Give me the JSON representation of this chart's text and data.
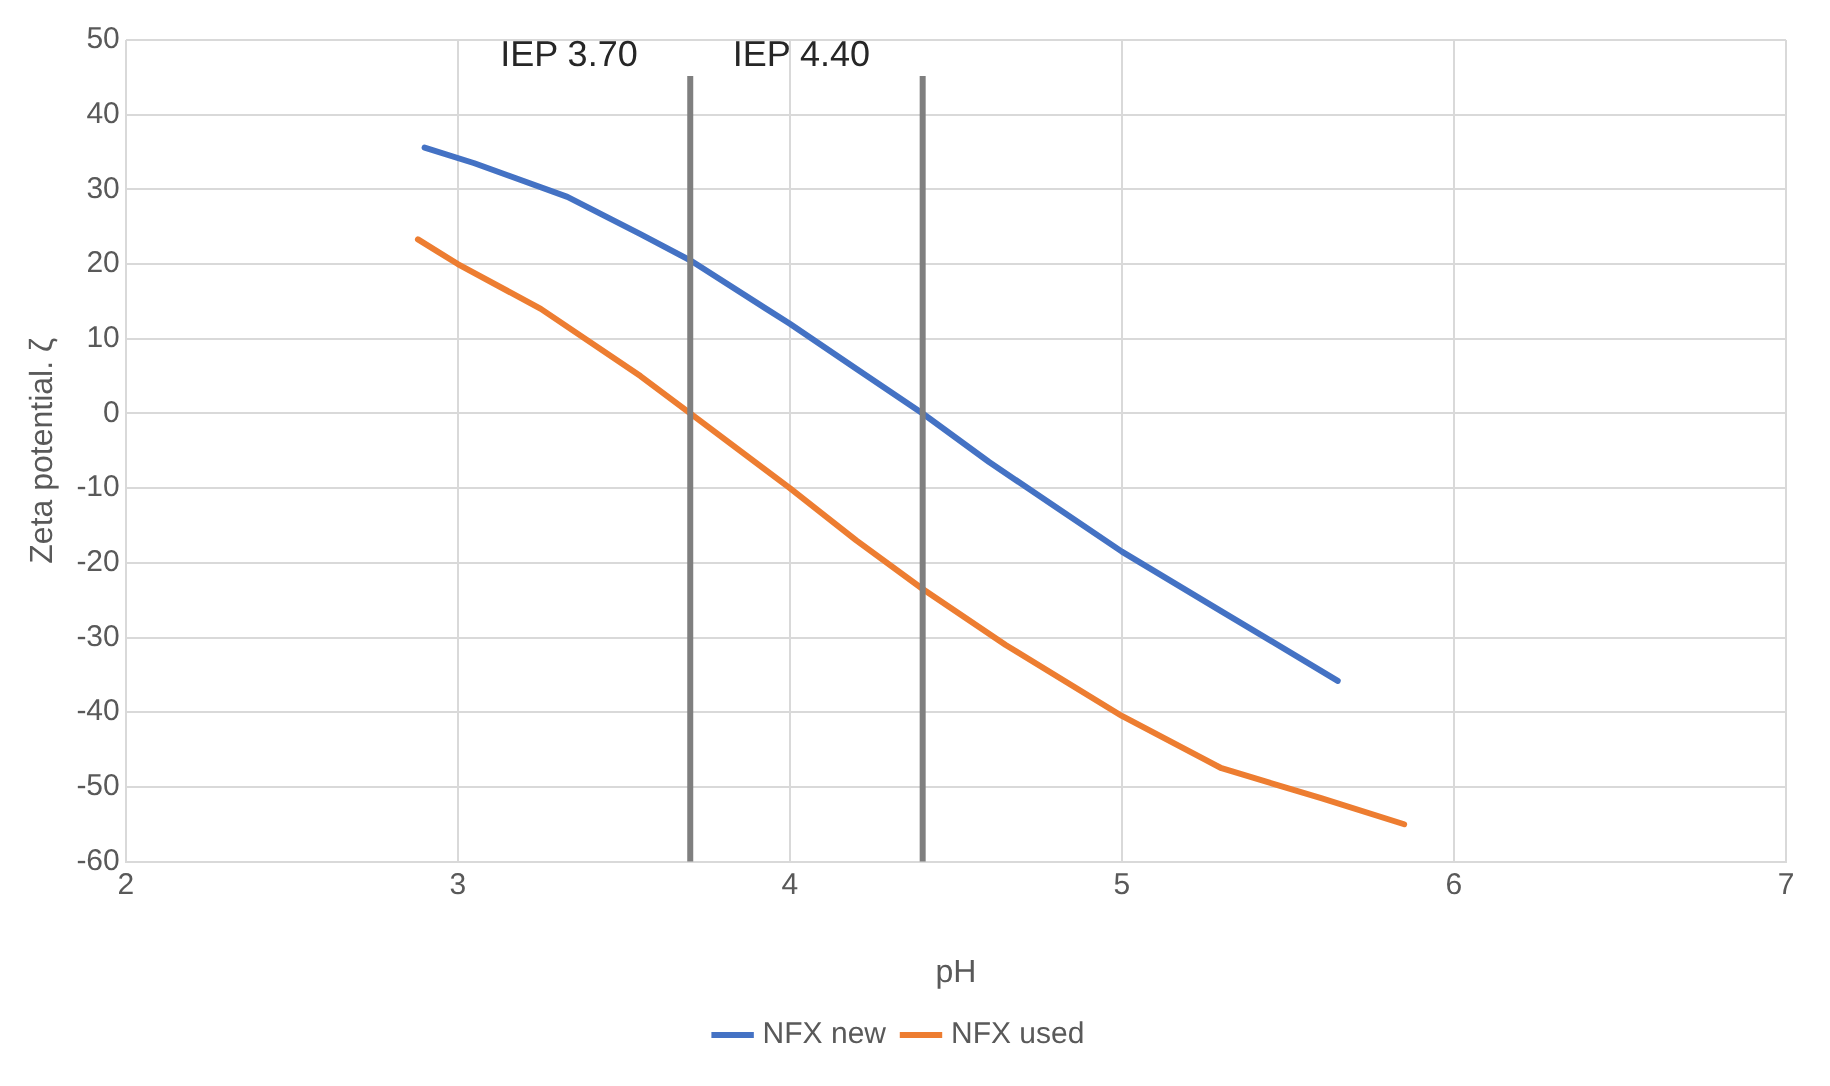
{
  "chart_data": {
    "type": "line",
    "xlabel": "pH",
    "ylabel": "Zeta potential. ζ",
    "xlim": [
      2,
      7
    ],
    "xticks": [
      2,
      3,
      4,
      5,
      6,
      7
    ],
    "ylim": [
      -60,
      50
    ],
    "yticks": [
      -60,
      -50,
      -40,
      -30,
      -20,
      -10,
      0,
      10,
      20,
      30,
      40,
      50
    ],
    "grid": true,
    "legend": "bottom",
    "marker": "none",
    "line_style": "solid",
    "series": [
      {
        "name": "NFX new",
        "color": "#4472c4",
        "x": [
          2.9,
          3.05,
          3.33,
          3.55,
          3.7,
          4.0,
          4.2,
          4.4,
          4.6,
          5.0,
          5.3,
          5.65
        ],
        "values": [
          35.6,
          33.5,
          29,
          24,
          20.5,
          12,
          6,
          0,
          -6.5,
          -18.5,
          -26.5,
          -35.8
        ]
      },
      {
        "name": "NFX used",
        "color": "#ed7d31",
        "x": [
          2.88,
          3.0,
          3.25,
          3.55,
          3.7,
          4.0,
          4.2,
          4.4,
          4.65,
          5.0,
          5.3,
          5.6,
          5.85
        ],
        "values": [
          23.3,
          20,
          14,
          5,
          0,
          -10,
          -17,
          -23.5,
          -31,
          -40.5,
          -47.5,
          -51.5,
          -55
        ]
      }
    ],
    "ref_lines": [
      {
        "axis": "x",
        "value": 3.7,
        "label": "IEP 3.70",
        "color": "#7f7f7f"
      },
      {
        "axis": "x",
        "value": 4.4,
        "label": "IEP 4.40",
        "color": "#7f7f7f"
      }
    ]
  }
}
